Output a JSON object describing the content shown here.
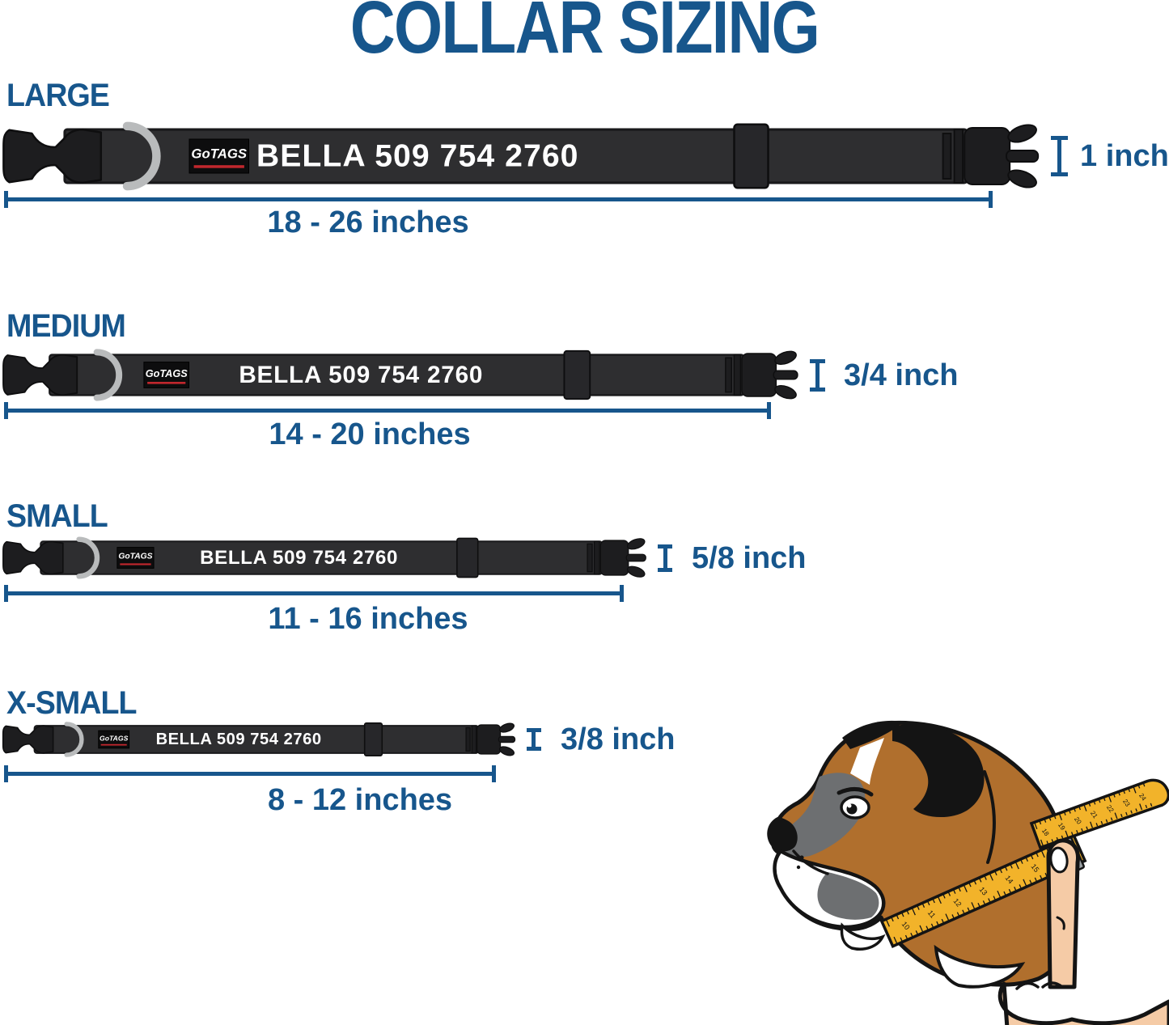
{
  "title": "COLLAR SIZING",
  "collar_print": "BELLA 509 754 2760",
  "brand_label": "GoTAGS",
  "sizes": [
    {
      "id": "large",
      "label": "LARGE",
      "length_range": "18 - 26 inches",
      "width_label": "1 inch"
    },
    {
      "id": "medium",
      "label": "MEDIUM",
      "length_range": "14 - 20 inches",
      "width_label": "3/4 inch"
    },
    {
      "id": "small",
      "label": "SMALL",
      "length_range": "11 - 16 inches",
      "width_label": "5/8 inch"
    },
    {
      "id": "xsmall",
      "label": "X-SMALL",
      "length_range": "8 - 12 inches",
      "width_label": "3/8 inch"
    }
  ],
  "tape_numbers": {
    "lower": [
      "10",
      "11",
      "12",
      "13",
      "14",
      "15",
      "16"
    ],
    "upper": [
      "18",
      "19",
      "20",
      "21",
      "22",
      "23",
      "24"
    ]
  },
  "colors": {
    "accent": "#17568c",
    "strap": "#2e2e30",
    "strap_outline": "#19191b",
    "buckle": "#1d1d1f",
    "buckle_outline": "#0e0e0f",
    "ring": "#b9bbbc",
    "patch_bg": "#0d0d0e",
    "patch_red": "#c1272d",
    "collar_text": "#ffffff",
    "tape": "#f2b32a",
    "dog_brown": "#b06f2d",
    "dog_gray": "#6d6f71",
    "skin": "#f5cba6",
    "outline": "#141414",
    "clip_gray": "#9aa0a3"
  }
}
